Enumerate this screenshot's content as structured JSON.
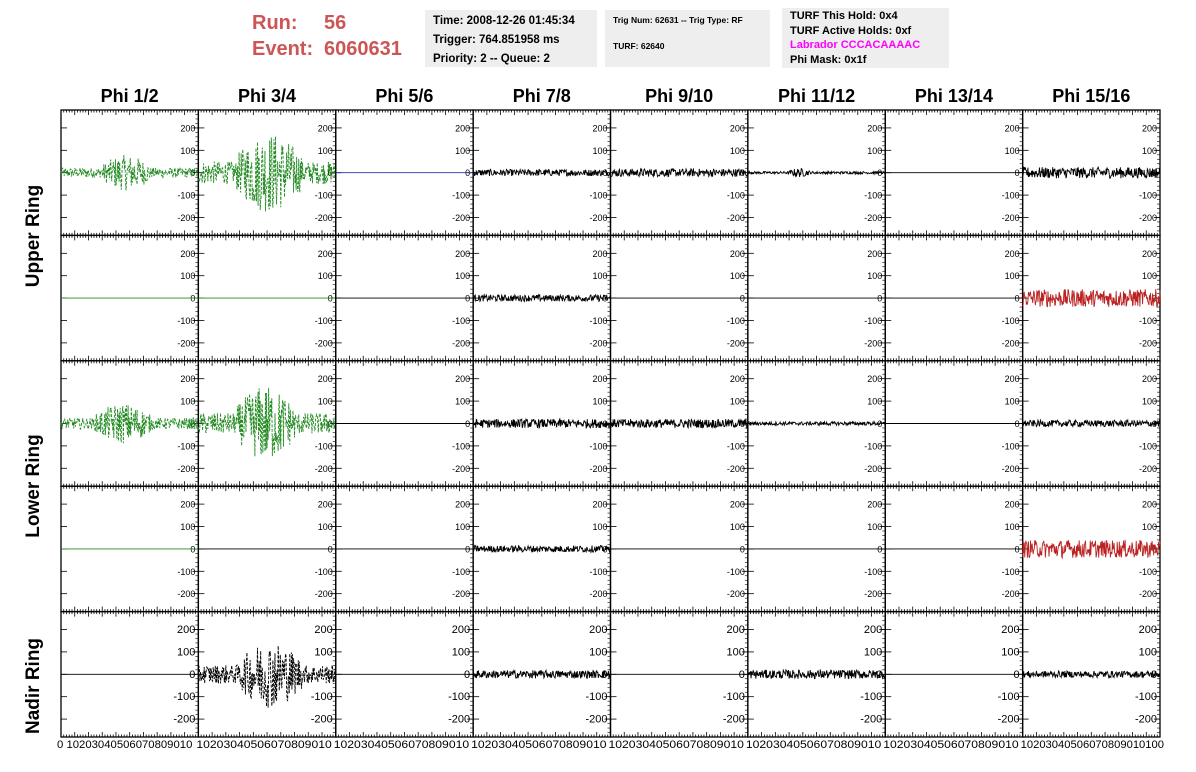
{
  "header": {
    "run_label": "Run:",
    "run_value": "56",
    "event_label": "Event:",
    "event_value": "6060631",
    "time": "Time: 2008-12-26 01:45:34",
    "trigger": "Trigger: 764.851958 ms",
    "priority": "Priority: 2 -- Queue: 2",
    "trig_num": "Trig Num: 62631 -- Trig Type: RF",
    "turf": "TURF: 62640",
    "turf_hold": "TURF This Hold: 0x4",
    "turf_active": "TURF Active Holds: 0xf",
    "labrador": "Labrador CCCACAAAAC",
    "phi_mask": "Phi Mask: 0x1f"
  },
  "colors": {
    "run_text": "#cc5555",
    "labrador_text": "#ff00ff",
    "green_trace": "#228b22",
    "red_trace": "#bb2222",
    "blue_trace": "#2233aa",
    "black_trace": "#000000"
  },
  "phi_headers": [
    "Phi 1/2",
    "Phi 3/4",
    "Phi 5/6",
    "Phi 7/8",
    "Phi 9/10",
    "Phi 11/12",
    "Phi 13/14",
    "Phi 15/16"
  ],
  "ring_labels": [
    "Upper Ring",
    "Lower Ring",
    "Nadir Ring"
  ],
  "chart_data": {
    "type": "line",
    "ylim": [
      -280,
      280
    ],
    "xlim": [
      0,
      100
    ],
    "y_ticks": [
      200,
      100,
      0,
      -100,
      -200
    ],
    "y_tick_labels": [
      "200",
      "100",
      "0",
      "-100",
      "-200"
    ],
    "x_tick_labels": [
      "0",
      "10",
      "20",
      "30",
      "40",
      "50",
      "60",
      "70",
      "80",
      "90",
      "100"
    ],
    "x_axis_row_labels": [
      "10203040506070809010",
      "10203040506070809010",
      "10203040506070809010",
      "10203040506070809010",
      "10203040506070809010",
      "10203040506070809010",
      "10203040506070809010",
      "10203040506070809010100"
    ],
    "rows": [
      {
        "ring": "Upper Ring",
        "cells": [
          {
            "color": "green",
            "dashed": true,
            "amp": 80,
            "burst": [
              30,
              65
            ]
          },
          {
            "color": "green",
            "dashed": true,
            "amp": 180,
            "burst": [
              28,
              75
            ]
          },
          {
            "color": "blue",
            "dashed": false,
            "amp": 0
          },
          {
            "color": "black",
            "dashed": false,
            "amp": 15
          },
          {
            "color": "black",
            "dashed": false,
            "amp": 18
          },
          {
            "color": "black",
            "dashed": false,
            "amp": 20,
            "burst": [
              30,
              45
            ]
          },
          {
            "color": "black",
            "dashed": false,
            "amp": 0
          },
          {
            "color": "black",
            "dashed": false,
            "amp": 25
          }
        ]
      },
      {
        "ring": "Upper Ring",
        "cells": [
          {
            "color": "green",
            "dashed": false,
            "amp": 0
          },
          {
            "color": "green",
            "dashed": false,
            "amp": 0
          },
          {
            "color": "black",
            "dashed": false,
            "amp": 0
          },
          {
            "color": "black",
            "dashed": false,
            "amp": 15
          },
          {
            "color": "black",
            "dashed": false,
            "amp": 0
          },
          {
            "color": "black",
            "dashed": false,
            "amp": 0
          },
          {
            "color": "black",
            "dashed": false,
            "amp": 0
          },
          {
            "color": "red",
            "dashed": false,
            "amp": 40
          }
        ]
      },
      {
        "ring": "Lower Ring",
        "cells": [
          {
            "color": "green",
            "dashed": true,
            "amp": 90,
            "burst": [
              25,
              65
            ]
          },
          {
            "color": "green",
            "dashed": true,
            "amp": 170,
            "burst": [
              28,
              70
            ]
          },
          {
            "color": "black",
            "dashed": false,
            "amp": 0
          },
          {
            "color": "black",
            "dashed": false,
            "amp": 20
          },
          {
            "color": "black",
            "dashed": false,
            "amp": 20
          },
          {
            "color": "black",
            "dashed": false,
            "amp": 8
          },
          {
            "color": "black",
            "dashed": false,
            "amp": 0
          },
          {
            "color": "black",
            "dashed": false,
            "amp": 15
          }
        ]
      },
      {
        "ring": "Lower Ring",
        "cells": [
          {
            "color": "green",
            "dashed": false,
            "amp": 0
          },
          {
            "color": "black",
            "dashed": false,
            "amp": 0
          },
          {
            "color": "black",
            "dashed": false,
            "amp": 0
          },
          {
            "color": "black",
            "dashed": false,
            "amp": 15
          },
          {
            "color": "black",
            "dashed": false,
            "amp": 0
          },
          {
            "color": "black",
            "dashed": false,
            "amp": 0
          },
          {
            "color": "black",
            "dashed": false,
            "amp": 0
          },
          {
            "color": "red",
            "dashed": false,
            "amp": 40
          }
        ]
      },
      {
        "ring": "Nadir Ring",
        "cells": [
          {
            "color": "black",
            "dashed": false,
            "amp": 0
          },
          {
            "color": "black",
            "dashed": true,
            "amp": 150,
            "burst": [
              30,
              75
            ]
          },
          {
            "color": "black",
            "dashed": false,
            "amp": 0
          },
          {
            "color": "black",
            "dashed": false,
            "amp": 18
          },
          {
            "color": "black",
            "dashed": false,
            "amp": 0
          },
          {
            "color": "black",
            "dashed": false,
            "amp": 20
          },
          {
            "color": "black",
            "dashed": false,
            "amp": 0
          },
          {
            "color": "black",
            "dashed": false,
            "amp": 15
          }
        ]
      }
    ]
  }
}
